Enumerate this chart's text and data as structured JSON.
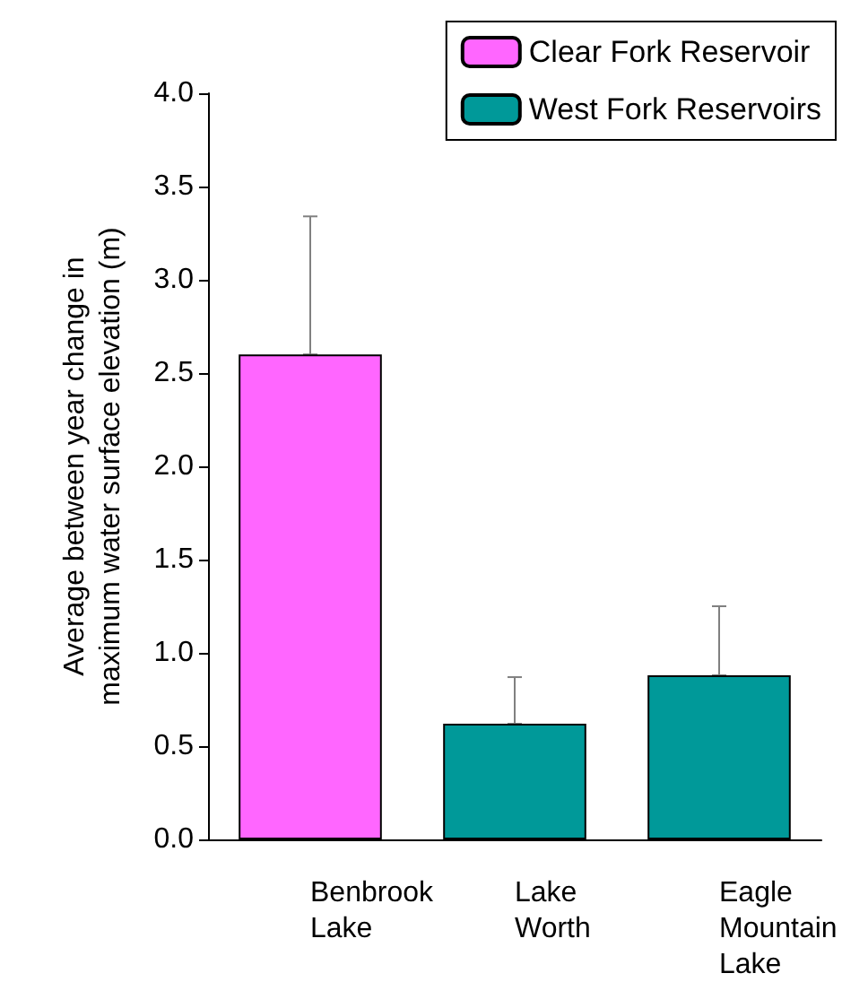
{
  "chart_data": {
    "type": "bar",
    "ylabel": "Average between year change in\nmaximum water surface elevation (m)",
    "categories": [
      "Benbrook\nLake",
      "Lake\nWorth",
      "Eagle\nMountain\nLake"
    ],
    "series": [
      {
        "name": "Clear Fork Reservoir",
        "color": "#ff66ff",
        "values": [
          2.6,
          null,
          null
        ],
        "errors": [
          [
            2.6,
            3.34
          ],
          null,
          null
        ]
      },
      {
        "name": "West Fork Reservoirs",
        "color": "#009999",
        "values": [
          null,
          0.62,
          0.88
        ],
        "errors": [
          null,
          [
            0.62,
            0.87
          ],
          [
            0.88,
            1.25
          ]
        ]
      }
    ],
    "ylim": [
      0,
      4
    ],
    "yticks": [
      {
        "value": 0,
        "label": "0.0"
      },
      0.5,
      {
        "value": 1,
        "label": "1.0"
      },
      1.5,
      {
        "value": 2,
        "label": "2.0"
      },
      2.5,
      {
        "value": 3,
        "label": "3.0"
      },
      3.5,
      {
        "value": 4,
        "label": "4.0"
      }
    ],
    "grid": false,
    "legend": "top right"
  }
}
